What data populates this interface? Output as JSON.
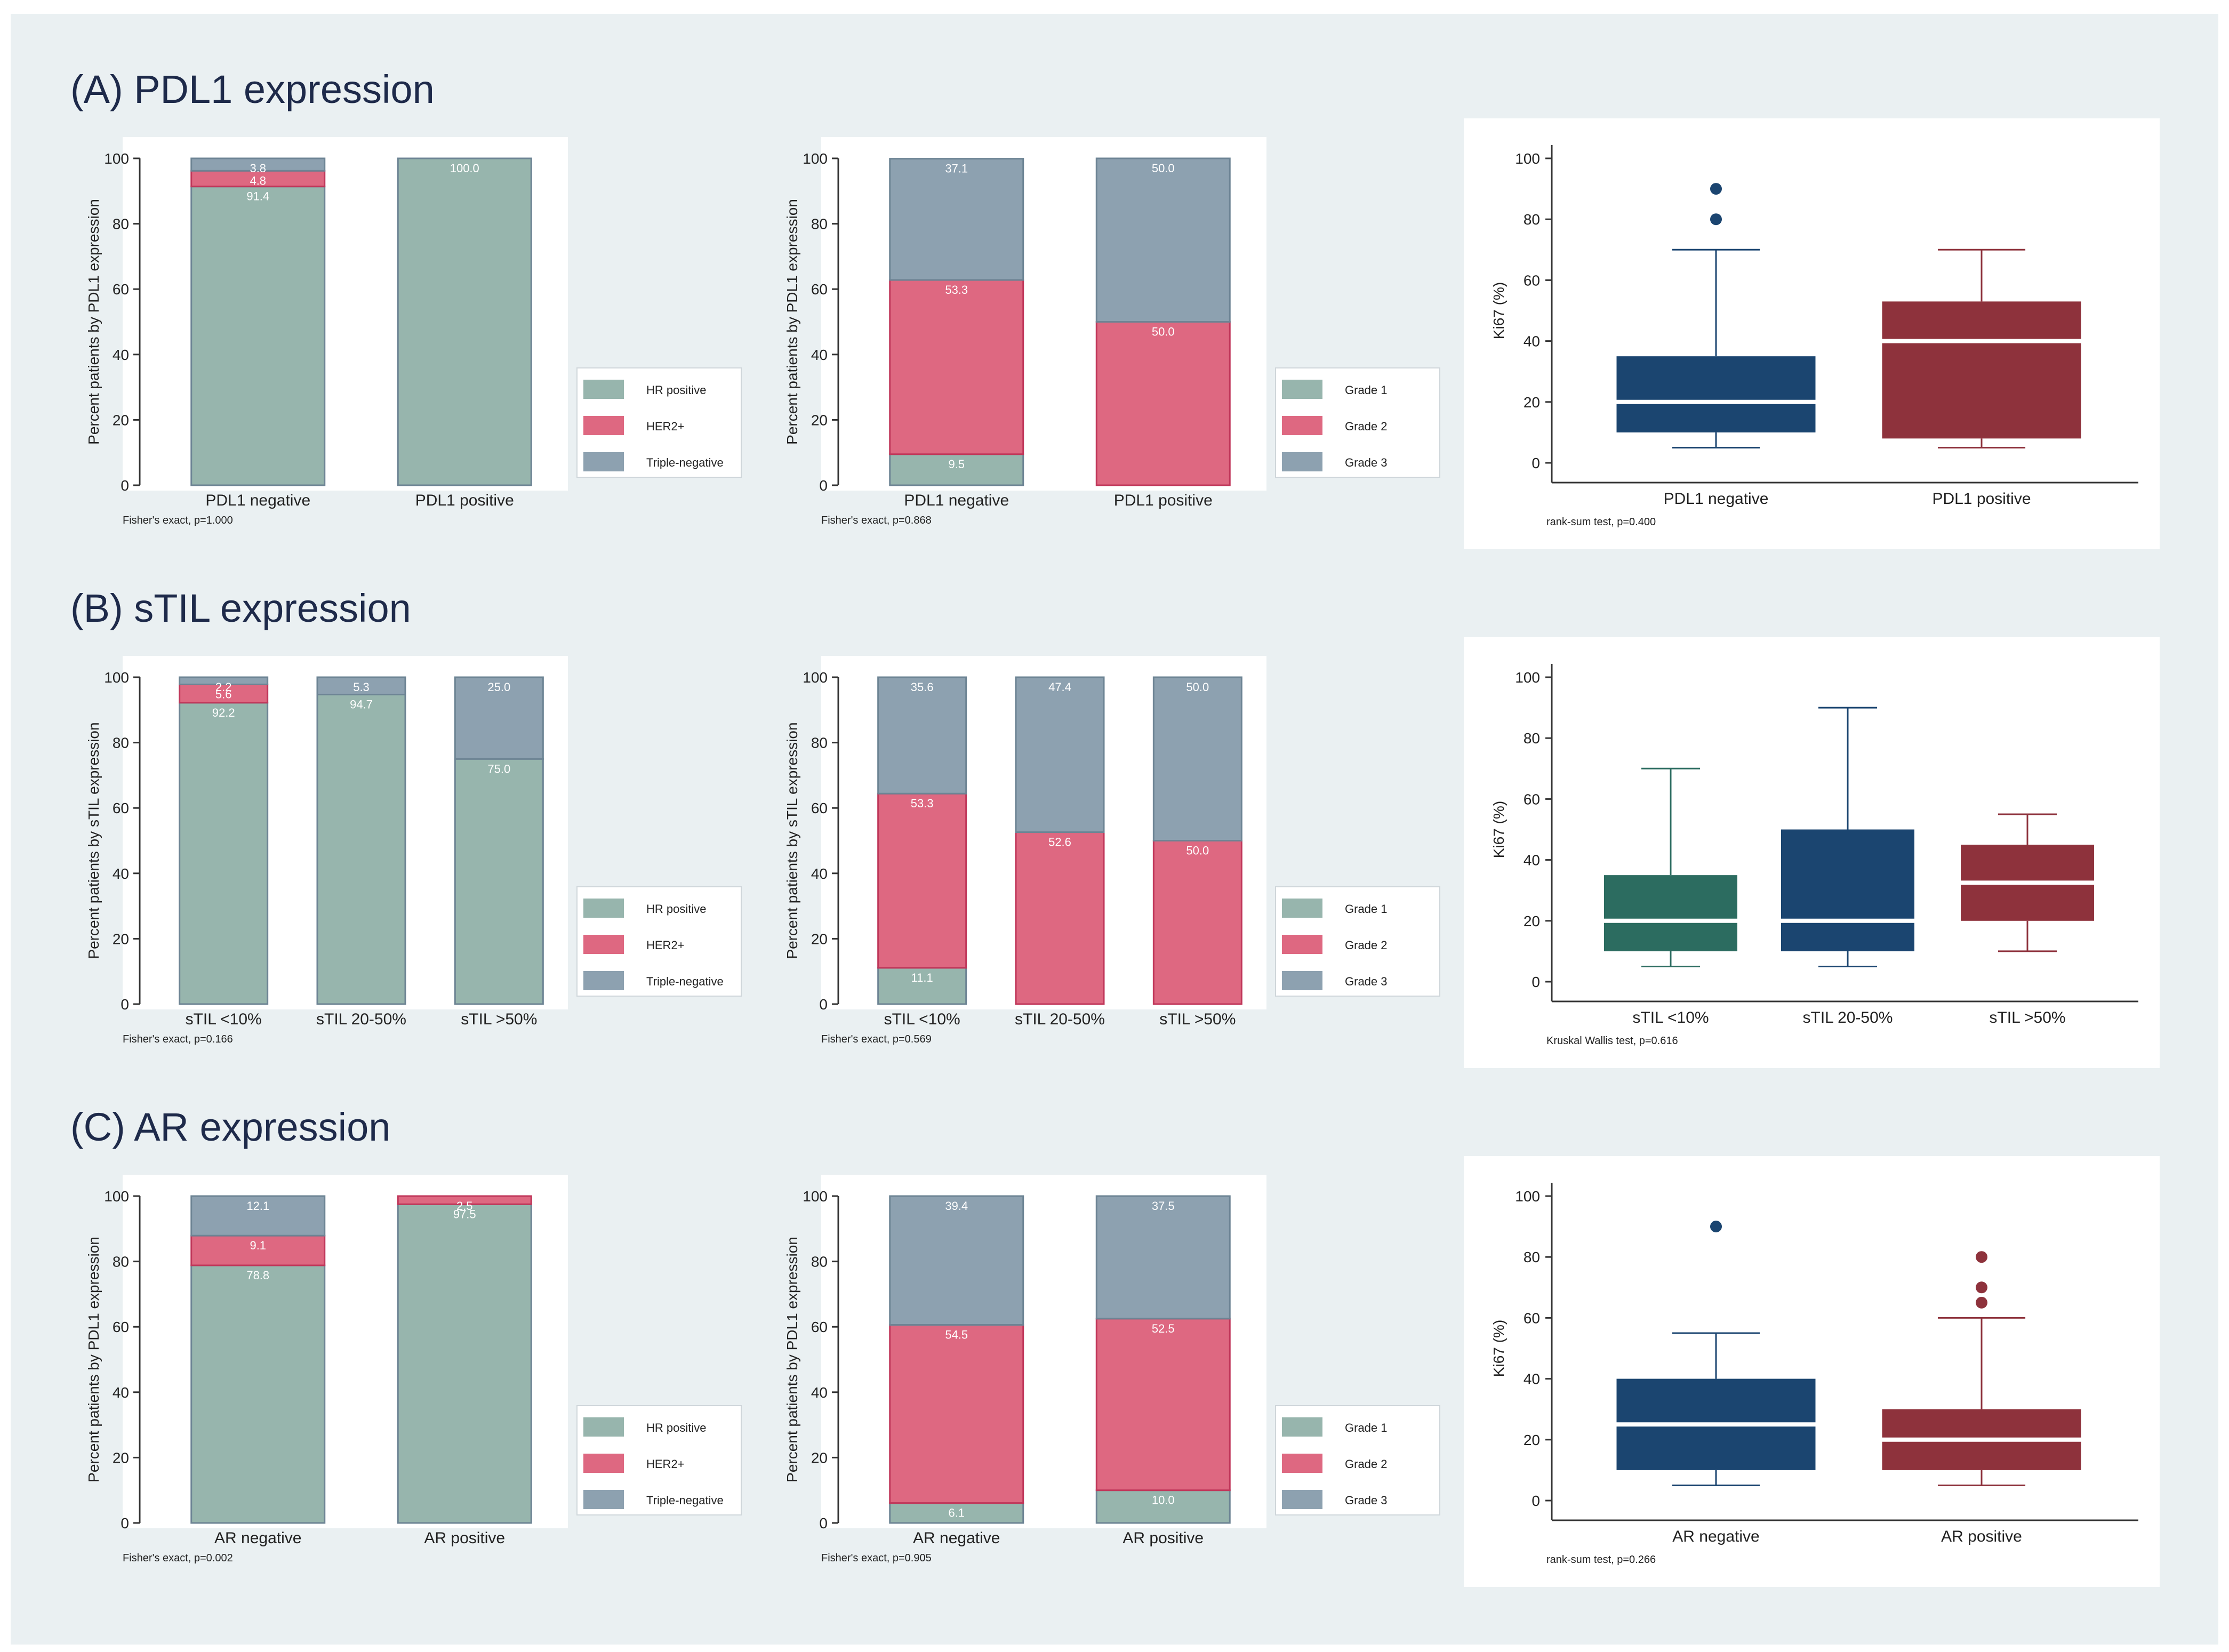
{
  "figure": {
    "background": "#eaf0f2",
    "colors": {
      "hr": "#97b5ad",
      "her2": "#de6881",
      "tn": "#8da1b0",
      "grade1": "#97b5ad",
      "grade2": "#de6881",
      "grade3": "#8da1b0",
      "navy": "#1b4570",
      "maroon": "#8e323c",
      "teal": "#2c6c60"
    },
    "sections": [
      {
        "title": "(A) PDL1 expression",
        "receptor": {
          "ylabel": "Percent patients by PDL1 expression",
          "categories": [
            "PDL1 negative",
            "PDL1 positive"
          ],
          "series": [
            {
              "name": "HR positive",
              "values": [
                91.4,
                100.0
              ],
              "labels": [
                "91.4",
                "100.0"
              ]
            },
            {
              "name": "HER2+",
              "values": [
                4.8,
                0
              ],
              "labels": [
                "4.8",
                ""
              ]
            },
            {
              "name": "Triple-negative",
              "values": [
                3.8,
                0
              ],
              "labels": [
                "3.8",
                ""
              ]
            }
          ],
          "yticks": [
            "0",
            "20",
            "40",
            "60",
            "80",
            "100"
          ],
          "note": "Fisher's exact, p=1.000"
        },
        "grade": {
          "ylabel": "Percent patients by PDL1 expression",
          "categories": [
            "PDL1 negative",
            "PDL1 positive"
          ],
          "series": [
            {
              "name": "Grade 1",
              "values": [
                9.5,
                0
              ],
              "labels": [
                "9.5",
                ""
              ]
            },
            {
              "name": "Grade 2",
              "values": [
                53.3,
                50.0
              ],
              "labels": [
                "53.3",
                "50.0"
              ]
            },
            {
              "name": "Grade 3",
              "values": [
                37.1,
                50.0
              ],
              "labels": [
                "37.1",
                "50.0"
              ]
            }
          ],
          "yticks": [
            "0",
            "20",
            "40",
            "60",
            "80",
            "100"
          ],
          "note": "Fisher's exact, p=0.868"
        },
        "box": {
          "ylabel": "Ki67 (%)",
          "yticks": [
            "0",
            "20",
            "40",
            "60",
            "80",
            "100"
          ],
          "groups": [
            {
              "name": "PDL1 negative",
              "min": 5,
              "q1": 10,
              "median": 20,
              "q3": 35,
              "max": 70,
              "outliers": [
                80,
                90
              ],
              "color": "navy"
            },
            {
              "name": "PDL1 positive",
              "min": 5,
              "q1": 8,
              "median": 40,
              "q3": 53,
              "max": 70,
              "outliers": [],
              "color": "maroon"
            }
          ],
          "note": "rank-sum test, p=0.400"
        }
      },
      {
        "title": "(B) sTIL expression",
        "receptor": {
          "ylabel": "Percent patients by sTIL expression",
          "categories": [
            "sTIL <10%",
            "sTIL 20-50%",
            "sTIL >50%"
          ],
          "series": [
            {
              "name": "HR positive",
              "values": [
                92.2,
                94.7,
                75.0
              ],
              "labels": [
                "92.2",
                "94.7",
                "75.0"
              ]
            },
            {
              "name": "HER2+",
              "values": [
                5.6,
                0,
                0
              ],
              "labels": [
                "5.6",
                "",
                ""
              ]
            },
            {
              "name": "Triple-negative",
              "values": [
                2.2,
                5.3,
                25.0
              ],
              "labels": [
                "2.2",
                "5.3",
                "25.0"
              ]
            }
          ],
          "yticks": [
            "0",
            "20",
            "40",
            "60",
            "80",
            "100"
          ],
          "note": "Fisher's exact, p=0.166"
        },
        "grade": {
          "ylabel": "Percent patients by sTIL expression",
          "categories": [
            "sTIL <10%",
            "sTIL 20-50%",
            "sTIL >50%"
          ],
          "series": [
            {
              "name": "Grade 1",
              "values": [
                11.1,
                0,
                0
              ],
              "labels": [
                "11.1",
                "",
                ""
              ]
            },
            {
              "name": "Grade 2",
              "values": [
                53.3,
                52.6,
                50.0
              ],
              "labels": [
                "53.3",
                "52.6",
                "50.0"
              ]
            },
            {
              "name": "Grade 3",
              "values": [
                35.6,
                47.4,
                50.0
              ],
              "labels": [
                "35.6",
                "47.4",
                "50.0"
              ]
            }
          ],
          "yticks": [
            "0",
            "20",
            "40",
            "60",
            "80",
            "100"
          ],
          "note": "Fisher's exact, p=0.569"
        },
        "box": {
          "ylabel": "Ki67 (%)",
          "yticks": [
            "0",
            "20",
            "40",
            "60",
            "80",
            "100"
          ],
          "groups": [
            {
              "name": "sTIL <10%",
              "min": 5,
              "q1": 10,
              "median": 20,
              "q3": 35,
              "max": 70,
              "outliers": [],
              "color": "teal"
            },
            {
              "name": "sTIL 20-50%",
              "min": 5,
              "q1": 10,
              "median": 20,
              "q3": 50,
              "max": 90,
              "outliers": [],
              "color": "navy"
            },
            {
              "name": "sTIL >50%",
              "min": 10,
              "q1": 20,
              "median": 32.5,
              "q3": 45,
              "max": 55,
              "outliers": [],
              "color": "maroon"
            }
          ],
          "note": "Kruskal Wallis test, p=0.616"
        }
      },
      {
        "title": "(C) AR expression",
        "receptor": {
          "ylabel": "Percent patients by PDL1 expression",
          "categories": [
            "AR negative",
            "AR positive"
          ],
          "series": [
            {
              "name": "HR positive",
              "values": [
                78.8,
                97.5
              ],
              "labels": [
                "78.8",
                "97.5"
              ]
            },
            {
              "name": "HER2+",
              "values": [
                9.1,
                2.5
              ],
              "labels": [
                "9.1",
                "2.5"
              ]
            },
            {
              "name": "Triple-negative",
              "values": [
                12.1,
                0
              ],
              "labels": [
                "12.1",
                ""
              ]
            }
          ],
          "yticks": [
            "0",
            "20",
            "40",
            "60",
            "80",
            "100"
          ],
          "note": "Fisher's exact, p=0.002"
        },
        "grade": {
          "ylabel": "Percent patients by PDL1 expression",
          "categories": [
            "AR negative",
            "AR positive"
          ],
          "series": [
            {
              "name": "Grade 1",
              "values": [
                6.1,
                10.0
              ],
              "labels": [
                "6.1",
                "10.0"
              ]
            },
            {
              "name": "Grade 2",
              "values": [
                54.5,
                52.5
              ],
              "labels": [
                "54.5",
                "52.5"
              ]
            },
            {
              "name": "Grade 3",
              "values": [
                39.4,
                37.5
              ],
              "labels": [
                "39.4",
                "37.5"
              ]
            }
          ],
          "yticks": [
            "0",
            "20",
            "40",
            "60",
            "80",
            "100"
          ],
          "note": "Fisher's exact, p=0.905"
        },
        "box": {
          "ylabel": "Ki67 (%)",
          "yticks": [
            "0",
            "20",
            "40",
            "60",
            "80",
            "100"
          ],
          "groups": [
            {
              "name": "AR negative",
              "min": 5,
              "q1": 10,
              "median": 25,
              "q3": 40,
              "max": 55,
              "outliers": [
                90
              ],
              "color": "navy"
            },
            {
              "name": "AR positive",
              "min": 5,
              "q1": 10,
              "median": 20,
              "q3": 30,
              "max": 60,
              "outliers": [
                65,
                70,
                80
              ],
              "color": "maroon"
            }
          ],
          "note": "rank-sum test, p=0.266"
        }
      }
    ]
  },
  "chart_data": [
    {
      "type": "bar",
      "stacked": true,
      "title": "(A) PDL1 expression",
      "ylabel": "Percent patients by PDL1 expression",
      "categories": [
        "PDL1 negative",
        "PDL1 positive"
      ],
      "series": [
        {
          "name": "HR positive",
          "values": [
            91.4,
            100.0
          ]
        },
        {
          "name": "HER2+",
          "values": [
            4.8,
            0
          ]
        },
        {
          "name": "Triple-negative",
          "values": [
            3.8,
            0
          ]
        }
      ],
      "ylim": [
        0,
        100
      ],
      "legend": "right",
      "annotation": "Fisher's exact, p=1.000"
    },
    {
      "type": "bar",
      "stacked": true,
      "title": "(A) PDL1 expression",
      "ylabel": "Percent patients by PDL1 expression",
      "categories": [
        "PDL1 negative",
        "PDL1 positive"
      ],
      "series": [
        {
          "name": "Grade 1",
          "values": [
            9.5,
            0
          ]
        },
        {
          "name": "Grade 2",
          "values": [
            53.3,
            50.0
          ]
        },
        {
          "name": "Grade 3",
          "values": [
            37.1,
            50.0
          ]
        }
      ],
      "ylim": [
        0,
        100
      ],
      "legend": "right",
      "annotation": "Fisher's exact, p=0.868"
    },
    {
      "type": "box",
      "title": "(A) PDL1 expression",
      "ylabel": "Ki67 (%)",
      "categories": [
        "PDL1 negative",
        "PDL1 positive"
      ],
      "ylim": [
        0,
        100
      ],
      "annotation": "rank-sum test, p=0.400"
    },
    {
      "type": "bar",
      "stacked": true,
      "title": "(B) sTIL expression",
      "ylabel": "Percent patients by sTIL expression",
      "categories": [
        "sTIL <10%",
        "sTIL 20-50%",
        "sTIL >50%"
      ],
      "series": [
        {
          "name": "HR positive",
          "values": [
            92.2,
            94.7,
            75.0
          ]
        },
        {
          "name": "HER2+",
          "values": [
            5.6,
            0,
            0
          ]
        },
        {
          "name": "Triple-negative",
          "values": [
            2.2,
            5.3,
            25.0
          ]
        }
      ],
      "ylim": [
        0,
        100
      ],
      "legend": "right",
      "annotation": "Fisher's exact, p=0.166"
    },
    {
      "type": "bar",
      "stacked": true,
      "title": "(B) sTIL expression",
      "ylabel": "Percent patients by sTIL expression",
      "categories": [
        "sTIL <10%",
        "sTIL 20-50%",
        "sTIL >50%"
      ],
      "series": [
        {
          "name": "Grade 1",
          "values": [
            11.1,
            0,
            0
          ]
        },
        {
          "name": "Grade 2",
          "values": [
            53.3,
            52.6,
            50.0
          ]
        },
        {
          "name": "Grade 3",
          "values": [
            35.6,
            47.4,
            50.0
          ]
        }
      ],
      "ylim": [
        0,
        100
      ],
      "legend": "right",
      "annotation": "Fisher's exact, p=0.569"
    },
    {
      "type": "box",
      "title": "(B) sTIL expression",
      "ylabel": "Ki67 (%)",
      "categories": [
        "sTIL <10%",
        "sTIL 20-50%",
        "sTIL >50%"
      ],
      "ylim": [
        0,
        100
      ],
      "annotation": "Kruskal Wallis test, p=0.616"
    },
    {
      "type": "bar",
      "stacked": true,
      "title": "(C) AR expression",
      "ylabel": "Percent patients by PDL1 expression",
      "categories": [
        "AR negative",
        "AR positive"
      ],
      "series": [
        {
          "name": "HR positive",
          "values": [
            78.8,
            97.5
          ]
        },
        {
          "name": "HER2+",
          "values": [
            9.1,
            2.5
          ]
        },
        {
          "name": "Triple-negative",
          "values": [
            12.1,
            0
          ]
        }
      ],
      "ylim": [
        0,
        100
      ],
      "legend": "right",
      "annotation": "Fisher's exact, p=0.002"
    },
    {
      "type": "bar",
      "stacked": true,
      "title": "(C) AR expression",
      "ylabel": "Percent patients by PDL1 expression",
      "categories": [
        "AR negative",
        "AR positive"
      ],
      "series": [
        {
          "name": "Grade 1",
          "values": [
            6.1,
            10.0
          ]
        },
        {
          "name": "Grade 2",
          "values": [
            54.5,
            52.5
          ]
        },
        {
          "name": "Grade 3",
          "values": [
            39.4,
            37.5
          ]
        }
      ],
      "ylim": [
        0,
        100
      ],
      "legend": "right",
      "annotation": "Fisher's exact, p=0.905"
    },
    {
      "type": "box",
      "title": "(C) AR expression",
      "ylabel": "Ki67 (%)",
      "categories": [
        "AR negative",
        "AR positive"
      ],
      "ylim": [
        0,
        100
      ],
      "annotation": "rank-sum test, p=0.266"
    }
  ]
}
